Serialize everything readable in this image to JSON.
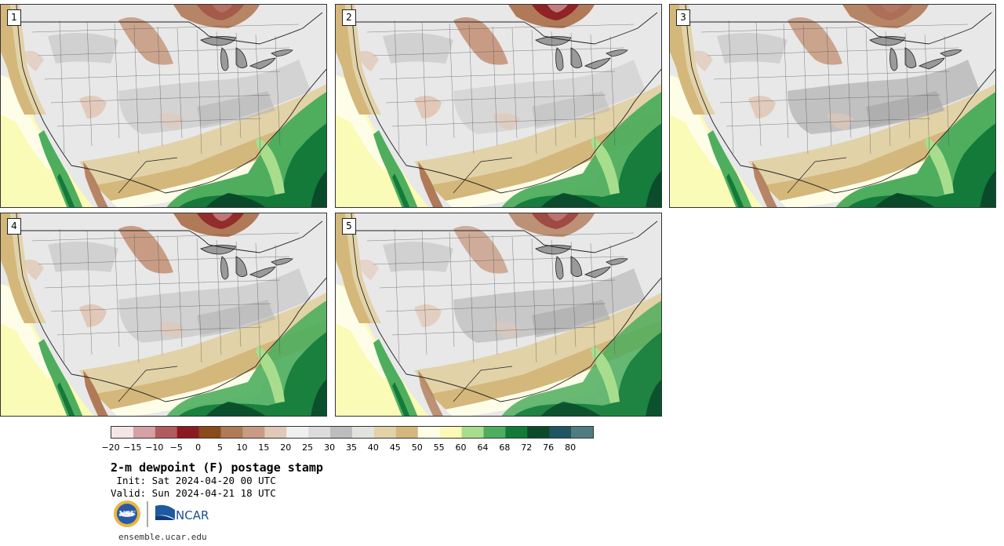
{
  "panels": [
    {
      "label": "1"
    },
    {
      "label": "2"
    },
    {
      "label": "3"
    },
    {
      "label": "4"
    },
    {
      "label": "5"
    }
  ],
  "colorbar": {
    "ticks": [
      "−20",
      "−15",
      "−10",
      "−5",
      "0",
      "5",
      "10",
      "15",
      "20",
      "25",
      "30",
      "35",
      "40",
      "45",
      "50",
      "55",
      "60",
      "64",
      "68",
      "72",
      "76",
      "80"
    ],
    "colors": [
      "#f4e6e6",
      "#d6a1a4",
      "#b05c5f",
      "#8c1a21",
      "#8b4a1a",
      "#b07a58",
      "#c89c84",
      "#e1c8b8",
      "#f0f0f0",
      "#dcdcdc",
      "#bdbdbd",
      "#e3e3de",
      "#e2d2a8",
      "#d4b77a",
      "#fefee8",
      "#fbfbb8",
      "#a9dd8e",
      "#4eae5e",
      "#137a3a",
      "#0a4a2a",
      "#1d5560",
      "#4f7c80"
    ]
  },
  "title": "2-m dewpoint (F) postage stamp",
  "init": " Init: Sat 2024-04-20 00 UTC",
  "valid": "Valid: Sun 2024-04-21 18 UTC",
  "logos": {
    "nsf": "NSF",
    "ncar": "NCAR"
  },
  "url": "ensemble.ucar.edu"
}
